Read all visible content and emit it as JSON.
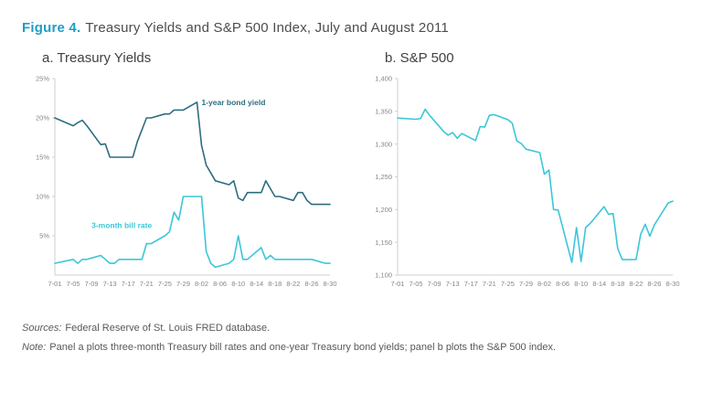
{
  "figure": {
    "label": "Figure 4.",
    "title": "Treasury Yields and S&P 500 Index, July and August 2011"
  },
  "footer": {
    "sources_label": "Sources:",
    "sources_text": "Federal Reserve of St. Louis FRED database.",
    "note_label": "Note:",
    "note_text": "Panel a plots three-month Treasury bill rates and one-year Treasury bond yields; panel b plots the S&P 500 index."
  },
  "colors": {
    "accent": "#1f9dc9",
    "dark_line": "#2d6d80",
    "light_line": "#3cc6d9",
    "axis": "#cfcfd1",
    "tick_text": "#85868a"
  },
  "chart_data": [
    {
      "type": "line",
      "title": "a. Treasury Yields",
      "xlabel": "",
      "ylabel": "",
      "ylim": [
        0,
        25
      ],
      "grid": false,
      "legend_position": "in-chart-labels",
      "x_ticks": [
        "7-01",
        "7-05",
        "7-09",
        "7-13",
        "7-17",
        "7-21",
        "7-25",
        "7-29",
        "8-02",
        "8-06",
        "8-10",
        "8-14",
        "8-18",
        "8-22",
        "8-26",
        "8-30"
      ],
      "y_ticks": [
        {
          "value": 25,
          "label": "25%"
        },
        {
          "value": 20,
          "label": "20%"
        },
        {
          "value": 15,
          "label": "15%"
        },
        {
          "value": 10,
          "label": "10%"
        },
        {
          "value": 5,
          "label": "5%"
        }
      ],
      "series": [
        {
          "name": "1-year bond yield",
          "color": "dark_line",
          "points": [
            [
              "7-01",
              20
            ],
            [
              "7-05",
              19
            ],
            [
              "7-06",
              19.4
            ],
            [
              "7-07",
              19.7
            ],
            [
              "7-08",
              19
            ],
            [
              "7-11",
              16.6
            ],
            [
              "7-12",
              16.7
            ],
            [
              "7-13",
              15
            ],
            [
              "7-14",
              15
            ],
            [
              "7-15",
              15
            ],
            [
              "7-18",
              15
            ],
            [
              "7-19",
              17
            ],
            [
              "7-20",
              18.5
            ],
            [
              "7-21",
              20
            ],
            [
              "7-22",
              20
            ],
            [
              "7-25",
              20.5
            ],
            [
              "7-26",
              20.5
            ],
            [
              "7-27",
              21
            ],
            [
              "7-28",
              21
            ],
            [
              "7-29",
              21
            ],
            [
              "8-01",
              22
            ],
            [
              "8-02",
              16.5
            ],
            [
              "8-03",
              14
            ],
            [
              "8-04",
              13
            ],
            [
              "8-05",
              12
            ],
            [
              "8-08",
              11.5
            ],
            [
              "8-09",
              12
            ],
            [
              "8-10",
              9.8
            ],
            [
              "8-11",
              9.5
            ],
            [
              "8-12",
              10.5
            ],
            [
              "8-15",
              10.5
            ],
            [
              "8-16",
              12
            ],
            [
              "8-17",
              11
            ],
            [
              "8-18",
              10
            ],
            [
              "8-19",
              10
            ],
            [
              "8-22",
              9.5
            ],
            [
              "8-23",
              10.5
            ],
            [
              "8-24",
              10.5
            ],
            [
              "8-25",
              9.5
            ],
            [
              "8-26",
              9
            ],
            [
              "8-29",
              9
            ],
            [
              "8-30",
              9
            ]
          ]
        },
        {
          "name": "3-month bill rate",
          "color": "light_line",
          "points": [
            [
              "7-01",
              1.5
            ],
            [
              "7-05",
              2
            ],
            [
              "7-06",
              1.5
            ],
            [
              "7-07",
              2
            ],
            [
              "7-08",
              2
            ],
            [
              "7-11",
              2.5
            ],
            [
              "7-12",
              2
            ],
            [
              "7-13",
              1.5
            ],
            [
              "7-14",
              1.5
            ],
            [
              "7-15",
              2
            ],
            [
              "7-18",
              2
            ],
            [
              "7-19",
              2
            ],
            [
              "7-20",
              2
            ],
            [
              "7-21",
              4
            ],
            [
              "7-22",
              4
            ],
            [
              "7-25",
              5
            ],
            [
              "7-26",
              5.5
            ],
            [
              "7-27",
              8
            ],
            [
              "7-28",
              7
            ],
            [
              "7-29",
              10
            ],
            [
              "8-01",
              10
            ],
            [
              "8-02",
              10
            ],
            [
              "8-03",
              3
            ],
            [
              "8-04",
              1.5
            ],
            [
              "8-05",
              1
            ],
            [
              "8-08",
              1.5
            ],
            [
              "8-09",
              2
            ],
            [
              "8-10",
              5
            ],
            [
              "8-11",
              2
            ],
            [
              "8-12",
              2
            ],
            [
              "8-15",
              3.5
            ],
            [
              "8-16",
              2
            ],
            [
              "8-17",
              2.5
            ],
            [
              "8-18",
              2
            ],
            [
              "8-19",
              2
            ],
            [
              "8-22",
              2
            ],
            [
              "8-23",
              2
            ],
            [
              "8-24",
              2
            ],
            [
              "8-25",
              2
            ],
            [
              "8-26",
              2
            ],
            [
              "8-29",
              1.5
            ],
            [
              "8-30",
              1.5
            ]
          ]
        }
      ],
      "annotations": [
        {
          "x": "8-02",
          "y": 21.6,
          "label": "1-year bond yield",
          "color": "dark_line",
          "anchor": "start"
        },
        {
          "x": "7-09",
          "y": 6.0,
          "label": "3-month bill rate",
          "color": "light_line",
          "anchor": "start"
        }
      ]
    },
    {
      "type": "line",
      "title": "b. S&P 500",
      "xlabel": "",
      "ylabel": "",
      "ylim": [
        1100,
        1400
      ],
      "grid": false,
      "legend_position": "none",
      "x_ticks": [
        "7-01",
        "7-05",
        "7-09",
        "7-13",
        "7-17",
        "7-21",
        "7-25",
        "7-29",
        "8-02",
        "8-06",
        "8-10",
        "8-14",
        "8-18",
        "8-22",
        "8-26",
        "8-30"
      ],
      "y_ticks": [
        {
          "value": 1400,
          "label": "1,400"
        },
        {
          "value": 1350,
          "label": "1,350"
        },
        {
          "value": 1300,
          "label": "1,300"
        },
        {
          "value": 1250,
          "label": "1,250"
        },
        {
          "value": 1200,
          "label": "1,200"
        },
        {
          "value": 1150,
          "label": "1,150"
        },
        {
          "value": 1100,
          "label": "1,100"
        }
      ],
      "series": [
        {
          "name": "S&P 500",
          "color": "light_line",
          "points": [
            [
              "7-01",
              1339.67
            ],
            [
              "7-05",
              1337.88
            ],
            [
              "7-06",
              1339.22
            ],
            [
              "7-07",
              1353.22
            ],
            [
              "7-08",
              1343.8
            ],
            [
              "7-11",
              1319.49
            ],
            [
              "7-12",
              1313.64
            ],
            [
              "7-13",
              1317.72
            ],
            [
              "7-14",
              1308.87
            ],
            [
              "7-15",
              1316.14
            ],
            [
              "7-18",
              1305.44
            ],
            [
              "7-19",
              1326.73
            ],
            [
              "7-20",
              1325.84
            ],
            [
              "7-21",
              1343.8
            ],
            [
              "7-22",
              1345.02
            ],
            [
              "7-25",
              1337.43
            ],
            [
              "7-26",
              1331.94
            ],
            [
              "7-27",
              1304.89
            ],
            [
              "7-28",
              1300.67
            ],
            [
              "7-29",
              1292.28
            ],
            [
              "8-01",
              1286.94
            ],
            [
              "8-02",
              1254.05
            ],
            [
              "8-03",
              1260.34
            ],
            [
              "8-04",
              1200.07
            ],
            [
              "8-05",
              1199.38
            ],
            [
              "8-08",
              1119.46
            ],
            [
              "8-09",
              1172.53
            ],
            [
              "8-10",
              1120.76
            ],
            [
              "8-11",
              1172.64
            ],
            [
              "8-12",
              1178.81
            ],
            [
              "8-15",
              1204.49
            ],
            [
              "8-16",
              1192.76
            ],
            [
              "8-17",
              1193.89
            ],
            [
              "8-18",
              1140.65
            ],
            [
              "8-19",
              1123.53
            ],
            [
              "8-22",
              1123.82
            ],
            [
              "8-23",
              1162.35
            ],
            [
              "8-24",
              1177.6
            ],
            [
              "8-25",
              1159.27
            ],
            [
              "8-26",
              1176.8
            ],
            [
              "8-29",
              1210.08
            ],
            [
              "8-30",
              1212.92
            ]
          ]
        }
      ],
      "annotations": []
    }
  ]
}
